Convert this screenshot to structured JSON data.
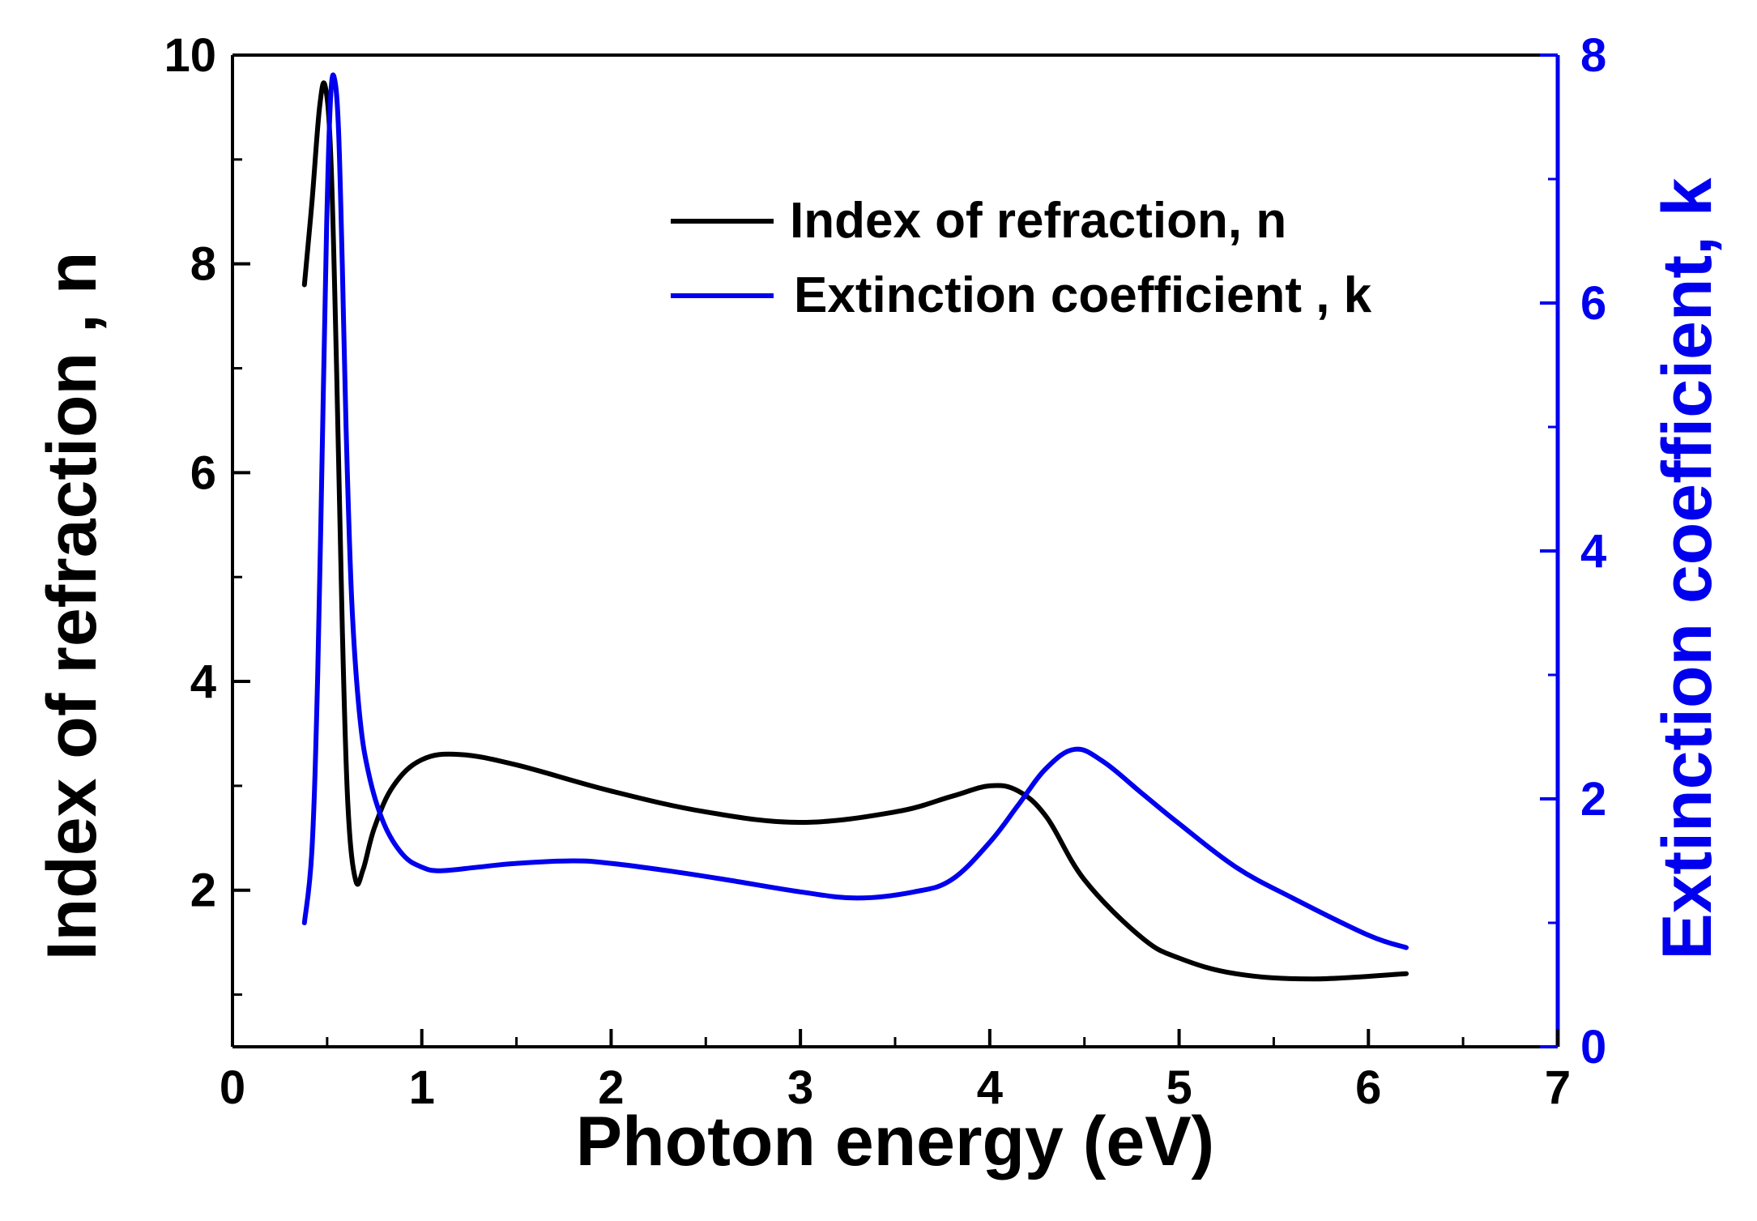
{
  "chart_data": {
    "type": "line",
    "title": "",
    "xlabel": "Photon energy (eV)",
    "ylabel_left": "Index of refraction , n",
    "ylabel_right": "Extinction coefficient, k",
    "xlim": [
      0,
      7
    ],
    "ylim_left": [
      0.5,
      10
    ],
    "ylim_right": [
      0,
      8
    ],
    "x_ticks": [
      0,
      1,
      2,
      3,
      4,
      5,
      6,
      7
    ],
    "y_left_ticks": [
      2,
      4,
      6,
      8,
      10
    ],
    "y_right_ticks": [
      0,
      2,
      4,
      6,
      8
    ],
    "grid": false,
    "legend_position": "top-right",
    "colors": {
      "n": "#000000",
      "k": "#0000ee",
      "left_axis": "#000000",
      "right_axis": "#0000ee"
    },
    "series": [
      {
        "name": "Index of refraction, n",
        "axis": "left",
        "x": [
          0.38,
          0.42,
          0.46,
          0.49,
          0.52,
          0.55,
          0.58,
          0.61,
          0.65,
          0.69,
          0.75,
          0.85,
          1.0,
          1.2,
          1.5,
          2.0,
          2.5,
          3.0,
          3.5,
          3.8,
          4.0,
          4.15,
          4.3,
          4.5,
          4.8,
          5.0,
          5.3,
          5.7,
          6.2
        ],
        "values": [
          7.8,
          8.6,
          9.5,
          9.7,
          9.0,
          7.0,
          4.5,
          2.8,
          2.1,
          2.2,
          2.6,
          3.0,
          3.25,
          3.3,
          3.2,
          2.95,
          2.75,
          2.65,
          2.75,
          2.9,
          3.0,
          2.95,
          2.7,
          2.1,
          1.55,
          1.35,
          1.2,
          1.15,
          1.2
        ]
      },
      {
        "name": "Extinction coefficient , k",
        "axis": "right",
        "x": [
          0.38,
          0.42,
          0.45,
          0.48,
          0.5,
          0.52,
          0.54,
          0.56,
          0.58,
          0.6,
          0.63,
          0.67,
          0.72,
          0.8,
          0.9,
          1.0,
          1.1,
          1.3,
          1.5,
          1.8,
          2.0,
          2.3,
          2.6,
          3.0,
          3.3,
          3.6,
          3.8,
          4.0,
          4.15,
          4.3,
          4.45,
          4.6,
          4.8,
          5.0,
          5.3,
          5.6,
          6.0,
          6.2
        ],
        "values": [
          1.0,
          1.6,
          3.0,
          5.3,
          6.8,
          7.7,
          7.8,
          7.4,
          6.3,
          5.0,
          3.6,
          2.7,
          2.2,
          1.8,
          1.55,
          1.45,
          1.42,
          1.45,
          1.48,
          1.5,
          1.48,
          1.42,
          1.35,
          1.25,
          1.2,
          1.25,
          1.35,
          1.65,
          1.95,
          2.25,
          2.4,
          2.3,
          2.05,
          1.8,
          1.45,
          1.2,
          0.9,
          0.8
        ]
      }
    ]
  }
}
